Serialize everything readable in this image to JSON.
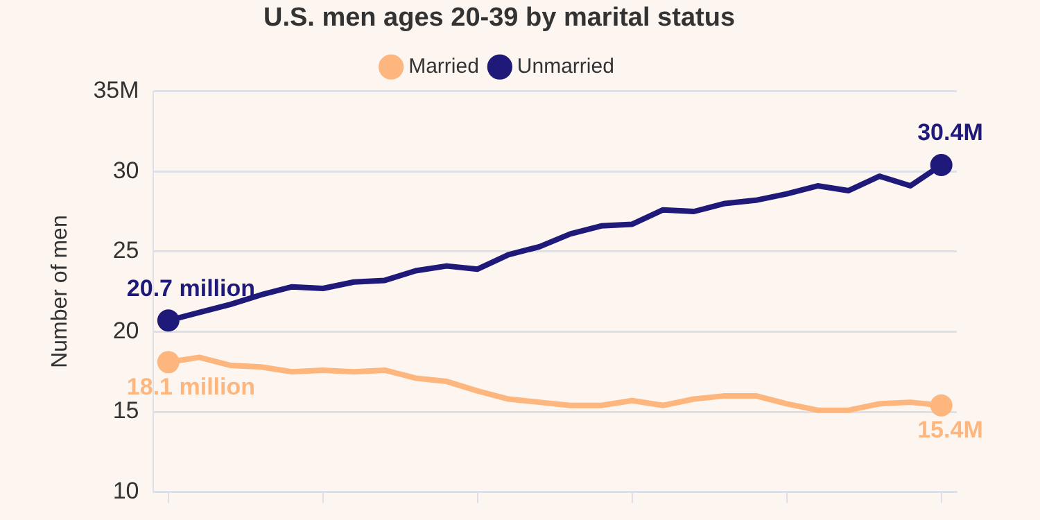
{
  "chart_data": {
    "type": "line",
    "title": "U.S. men ages 20-39 by marital status",
    "ylabel": "Number of men",
    "categories": [
      null,
      null,
      null,
      null,
      null,
      null,
      null,
      null,
      null,
      null,
      null,
      null,
      null,
      null,
      null,
      null,
      null,
      null,
      null,
      null,
      null,
      null,
      null,
      null,
      null,
      null
    ],
    "series": [
      {
        "name": "Married",
        "color": "#fdb67e",
        "values": [
          18.1,
          18.4,
          17.9,
          17.8,
          17.5,
          17.6,
          17.5,
          17.6,
          17.1,
          16.9,
          16.3,
          15.8,
          15.6,
          15.4,
          15.4,
          15.7,
          15.4,
          15.8,
          16.0,
          16.0,
          15.5,
          15.1,
          15.1,
          15.5,
          15.6,
          15.4
        ],
        "value_labels": [
          "18.1 million",
          null,
          null,
          null,
          null,
          null,
          null,
          null,
          null,
          null,
          null,
          null,
          null,
          null,
          null,
          null,
          null,
          null,
          null,
          null,
          null,
          null,
          null,
          null,
          null,
          "15.4M"
        ]
      },
      {
        "name": "Unmarried",
        "color": "#1f1a7a",
        "values": [
          20.7,
          21.2,
          21.7,
          22.3,
          22.8,
          22.7,
          23.1,
          23.2,
          23.8,
          24.1,
          23.9,
          24.8,
          25.3,
          26.1,
          26.6,
          26.7,
          27.6,
          27.5,
          28.0,
          28.2,
          28.6,
          29.1,
          28.8,
          29.7,
          29.1,
          30.4
        ],
        "value_labels": [
          "20.7 million",
          null,
          null,
          null,
          null,
          null,
          null,
          null,
          null,
          null,
          null,
          null,
          null,
          null,
          null,
          null,
          null,
          null,
          null,
          null,
          null,
          null,
          null,
          null,
          null,
          "30.4M"
        ]
      }
    ],
    "ylim": [
      10,
      35
    ],
    "yticks": [
      10,
      15,
      20,
      25,
      30,
      {
        "value": 35,
        "label": "35M"
      }
    ],
    "grid": "y",
    "legend": "top",
    "tick_labels": "y",
    "line_style": "solid"
  }
}
